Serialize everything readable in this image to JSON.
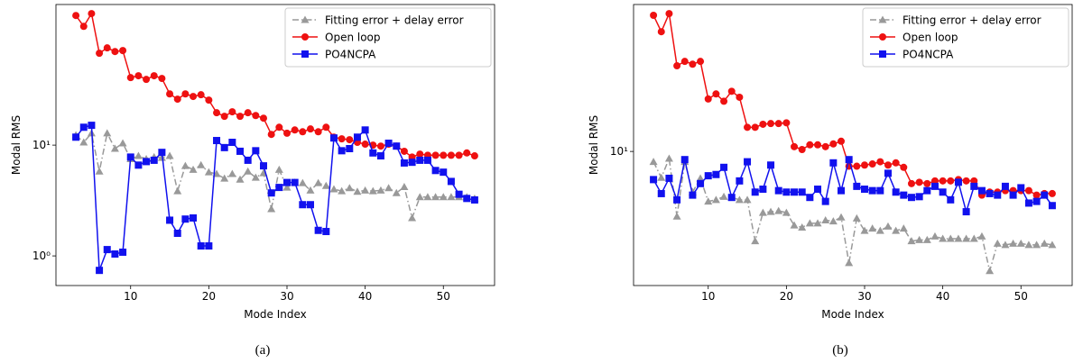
{
  "chart_data": [
    {
      "type": "line",
      "caption": "(a)",
      "xlabel": "Mode Index",
      "ylabel": "Modal RMS",
      "yscale": "log",
      "legend": "upper right",
      "x": [
        3,
        4,
        5,
        6,
        7,
        8,
        9,
        10,
        11,
        12,
        13,
        14,
        15,
        16,
        17,
        18,
        19,
        20,
        21,
        22,
        23,
        24,
        25,
        26,
        27,
        28,
        29,
        30,
        31,
        32,
        33,
        34,
        35,
        36,
        37,
        38,
        39,
        40,
        41,
        42,
        43,
        44,
        45,
        46,
        47,
        48,
        49,
        50,
        51,
        52,
        53,
        54
      ],
      "xlim": [
        0.45,
        56.55
      ],
      "xticks": [
        10,
        20,
        30,
        40,
        50
      ],
      "ylim": [
        0.54,
        186
      ],
      "yticks": [
        {
          "value": 1,
          "label": "10⁰"
        },
        {
          "value": 10,
          "label": "10¹"
        }
      ],
      "series": [
        {
          "name": "Fitting error + delay error",
          "color": "#999999",
          "marker": "triangle",
          "linestyle": "dashdot",
          "values": [
            12.3,
            10.6,
            12.8,
            5.8,
            12.8,
            9.3,
            10.4,
            7.5,
            8.0,
            7.5,
            7.8,
            7.7,
            8.0,
            3.85,
            6.5,
            6.0,
            6.6,
            5.7,
            5.5,
            5.0,
            5.5,
            4.9,
            5.8,
            5.1,
            5.6,
            2.65,
            6.0,
            4.15,
            4.6,
            4.55,
            3.9,
            4.55,
            4.3,
            4.0,
            3.85,
            4.1,
            3.8,
            3.9,
            3.85,
            3.9,
            4.1,
            3.7,
            4.2,
            2.2,
            3.4,
            3.4,
            3.4,
            3.4,
            3.4,
            3.4,
            3.4,
            3.3
          ]
        },
        {
          "name": "Open loop",
          "color": "#ee1111",
          "marker": "circle",
          "linestyle": "solid",
          "values": [
            148,
            118,
            154,
            67.5,
            75.5,
            70,
            71.4,
            40.7,
            42.3,
            39.2,
            42.3,
            40,
            29,
            26,
            29,
            27.5,
            28.5,
            25.5,
            19.6,
            18.2,
            20,
            18.2,
            19.6,
            18.5,
            17.5,
            12.5,
            14.5,
            12.8,
            13.7,
            13.2,
            14,
            13.2,
            14.5,
            11.8,
            11.4,
            11.2,
            10.6,
            10.2,
            10,
            9.8,
            10.2,
            9.8,
            8.8,
            7.8,
            8.3,
            8.1,
            8.1,
            8.1,
            8.1,
            8.1,
            8.5,
            8.0
          ]
        },
        {
          "name": "PO4NCPA",
          "color": "#1111ee",
          "marker": "square",
          "linestyle": "solid",
          "values": [
            11.8,
            14.5,
            15.1,
            0.74,
            1.14,
            1.04,
            1.08,
            7.8,
            6.6,
            7.1,
            7.3,
            8.6,
            2.1,
            1.6,
            2.15,
            2.2,
            1.23,
            1.23,
            11,
            9.5,
            10.6,
            8.8,
            7.3,
            8.9,
            6.5,
            3.7,
            4.15,
            4.6,
            4.6,
            2.9,
            2.9,
            1.7,
            1.66,
            11.6,
            8.9,
            9.3,
            11.8,
            13.7,
            8.5,
            8.0,
            10.4,
            9.8,
            6.9,
            7.0,
            7.3,
            7.3,
            5.9,
            5.7,
            4.7,
            3.6,
            3.3,
            3.2
          ]
        }
      ]
    },
    {
      "type": "line",
      "caption": "(b)",
      "xlabel": "Mode Index",
      "ylabel": "Modal RMS",
      "yscale": "log",
      "legend": "upper right",
      "x": [
        3,
        4,
        5,
        6,
        7,
        8,
        9,
        10,
        11,
        12,
        13,
        14,
        15,
        16,
        17,
        18,
        19,
        20,
        21,
        22,
        23,
        24,
        25,
        26,
        27,
        28,
        29,
        30,
        31,
        32,
        33,
        34,
        35,
        36,
        37,
        38,
        39,
        40,
        41,
        42,
        43,
        44,
        45,
        46,
        47,
        48,
        49,
        50,
        51,
        52,
        53,
        54
      ],
      "xlim": [
        0.45,
        56.55
      ],
      "xticks": [
        10,
        20,
        30,
        40,
        50
      ],
      "ylim": [
        2.54,
        44.9
      ],
      "yticks": [
        {
          "value": 10,
          "label": "10¹"
        }
      ],
      "series": [
        {
          "name": "Fitting error + delay error",
          "color": "#999999",
          "marker": "triangle",
          "linestyle": "dashdot",
          "values": [
            9.0,
            7.65,
            9.3,
            5.15,
            9.0,
            6.6,
            7.6,
            6.0,
            6.1,
            6.3,
            6.25,
            6.1,
            6.1,
            4.0,
            5.35,
            5.4,
            5.45,
            5.35,
            4.7,
            4.6,
            4.8,
            4.8,
            4.95,
            4.9,
            5.1,
            3.2,
            5.05,
            4.45,
            4.55,
            4.45,
            4.65,
            4.45,
            4.55,
            4.0,
            4.05,
            4.05,
            4.2,
            4.1,
            4.1,
            4.1,
            4.1,
            4.1,
            4.2,
            2.95,
            3.9,
            3.85,
            3.9,
            3.9,
            3.85,
            3.85,
            3.9,
            3.85
          ]
        },
        {
          "name": "Open loop",
          "color": "#ee1111",
          "marker": "circle",
          "linestyle": "solid",
          "values": [
            40.2,
            34,
            40.9,
            24,
            25.1,
            24.4,
            25.1,
            17.1,
            18,
            16.7,
            18.5,
            17.4,
            12.8,
            12.8,
            13.2,
            13.3,
            13.3,
            13.4,
            10.5,
            10.2,
            10.7,
            10.7,
            10.5,
            10.8,
            11.1,
            8.6,
            8.6,
            8.7,
            8.8,
            9.0,
            8.7,
            8.9,
            8.5,
            7.2,
            7.3,
            7.2,
            7.4,
            7.4,
            7.4,
            7.5,
            7.4,
            7.4,
            6.4,
            6.6,
            6.6,
            6.7,
            6.7,
            6.7,
            6.7,
            6.4,
            6.5,
            6.5
          ]
        },
        {
          "name": "PO4NCPA",
          "color": "#1111ee",
          "marker": "square",
          "linestyle": "solid",
          "values": [
            7.5,
            6.5,
            7.6,
            6.1,
            9.2,
            6.4,
            7.2,
            7.8,
            7.9,
            8.5,
            6.25,
            7.4,
            9.0,
            6.6,
            6.8,
            8.7,
            6.7,
            6.6,
            6.6,
            6.6,
            6.25,
            6.8,
            6.0,
            8.9,
            6.7,
            9.2,
            7.0,
            6.8,
            6.7,
            6.7,
            8.0,
            6.6,
            6.4,
            6.25,
            6.3,
            6.7,
            7.0,
            6.6,
            6.1,
            7.3,
            5.4,
            7.0,
            6.7,
            6.5,
            6.4,
            7.0,
            6.4,
            6.9,
            5.9,
            6.0,
            6.4,
            5.75
          ]
        }
      ]
    }
  ]
}
